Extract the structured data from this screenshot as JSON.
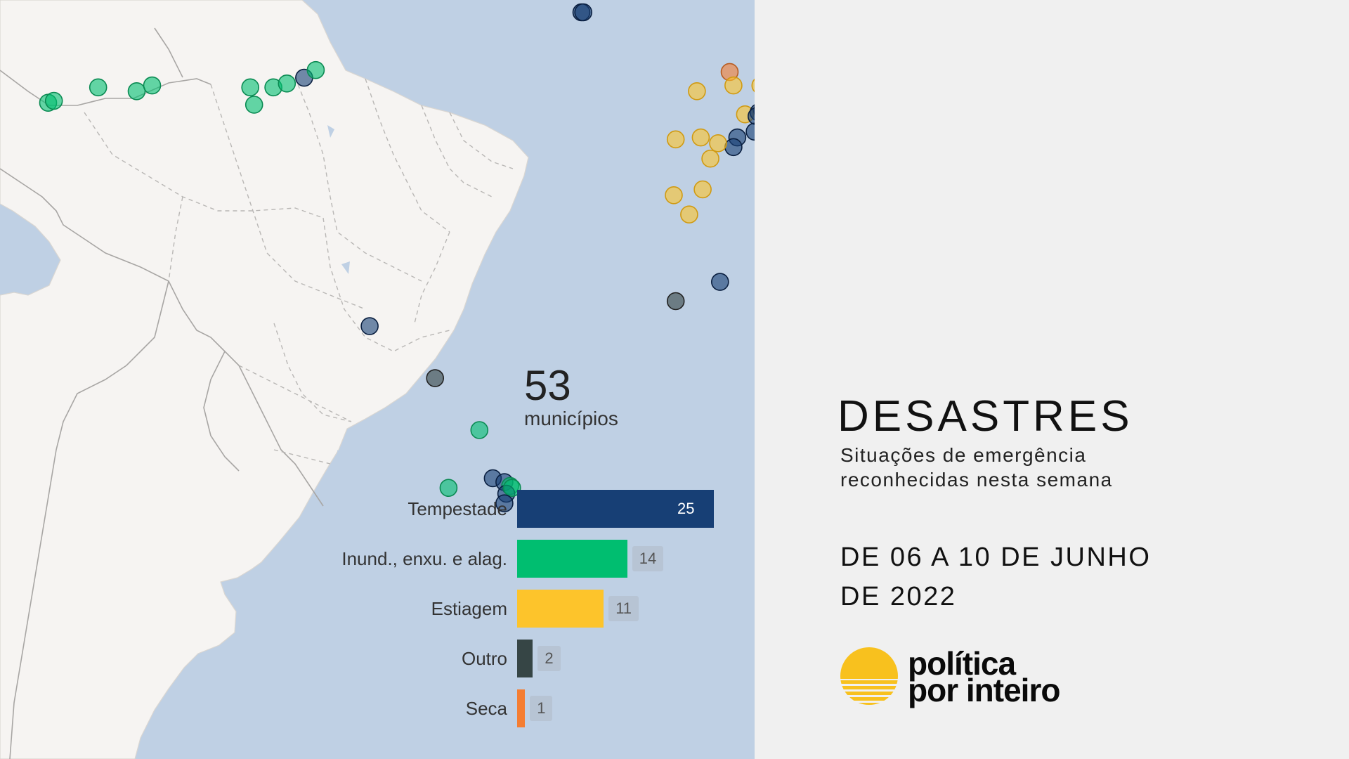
{
  "map": {
    "markers": [
      {
        "category": "Inund., enxu. e alag.",
        "lon": -72.0,
        "lat": -7.6
      },
      {
        "category": "Inund., enxu. e alag.",
        "lon": -71.7,
        "lat": -7.5
      },
      {
        "category": "Inund., enxu. e alag.",
        "lon": -69.4,
        "lat": -6.8
      },
      {
        "category": "Inund., enxu. e alag.",
        "lon": -67.4,
        "lat": -7.0
      },
      {
        "category": "Inund., enxu. e alag.",
        "lon": -66.6,
        "lat": -6.7
      },
      {
        "category": "Inund., enxu. e alag.",
        "lon": -61.5,
        "lat": -6.8
      },
      {
        "category": "Inund., enxu. e alag.",
        "lon": -61.3,
        "lat": -7.7
      },
      {
        "category": "Inund., enxu. e alag.",
        "lon": -60.3,
        "lat": -6.8
      },
      {
        "category": "Inund., enxu. e alag.",
        "lon": -59.6,
        "lat": -6.6
      },
      {
        "category": "Tempestade",
        "lon": -58.7,
        "lat": -6.3
      },
      {
        "category": "Inund., enxu. e alag.",
        "lon": -58.1,
        "lat": -5.9
      },
      {
        "category": "Tempestade",
        "lon": -44.3,
        "lat": -2.9
      },
      {
        "category": "Tempestade",
        "lon": -44.2,
        "lat": -2.9
      },
      {
        "category": "Seca",
        "lon": -36.6,
        "lat": -6.0
      },
      {
        "category": "Estiagem",
        "lon": -36.4,
        "lat": -6.7
      },
      {
        "category": "Estiagem",
        "lon": -35.0,
        "lat": -6.7
      },
      {
        "category": "Estiagem",
        "lon": -38.3,
        "lat": -7.0
      },
      {
        "category": "Estiagem",
        "lon": -35.8,
        "lat": -8.2
      },
      {
        "category": "Tempestade",
        "lon": -35.1,
        "lat": -8.1
      },
      {
        "category": "Tempestade",
        "lon": -34.9,
        "lat": -8.0
      },
      {
        "category": "Tempestade",
        "lon": -34.6,
        "lat": -8.1
      },
      {
        "category": "Tempestade",
        "lon": -35.2,
        "lat": -8.3
      },
      {
        "category": "Tempestade",
        "lon": -34.8,
        "lat": -8.6
      },
      {
        "category": "Tempestade",
        "lon": -35.3,
        "lat": -9.1
      },
      {
        "category": "Tempestade",
        "lon": -36.2,
        "lat": -9.4
      },
      {
        "category": "Tempestade",
        "lon": -36.4,
        "lat": -9.9
      },
      {
        "category": "Estiagem",
        "lon": -39.4,
        "lat": -9.5
      },
      {
        "category": "Estiagem",
        "lon": -38.1,
        "lat": -9.4
      },
      {
        "category": "Estiagem",
        "lon": -37.2,
        "lat": -9.7
      },
      {
        "category": "Estiagem",
        "lon": -37.6,
        "lat": -10.5
      },
      {
        "category": "Estiagem",
        "lon": -39.5,
        "lat": -12.4
      },
      {
        "category": "Estiagem",
        "lon": -38.0,
        "lat": -12.1
      },
      {
        "category": "Estiagem",
        "lon": -38.7,
        "lat": -13.4
      },
      {
        "category": "Tempestade",
        "lon": -37.1,
        "lat": -16.9
      },
      {
        "category": "Outro",
        "lon": -39.4,
        "lat": -17.9
      },
      {
        "category": "Tempestade",
        "lon": -55.3,
        "lat": -19.2
      },
      {
        "category": "Outro",
        "lon": -51.9,
        "lat": -21.9
      },
      {
        "category": "Inund., enxu. e alag.",
        "lon": -49.6,
        "lat": -24.6
      },
      {
        "category": "Tempestade",
        "lon": -48.9,
        "lat": -27.1
      },
      {
        "category": "Tempestade",
        "lon": -48.3,
        "lat": -27.3
      },
      {
        "category": "Inund., enxu. e alag.",
        "lon": -48.0,
        "lat": -27.5
      },
      {
        "category": "Tempestade",
        "lon": -48.2,
        "lat": -27.9
      },
      {
        "category": "Inund., enxu. e alag.",
        "lon": -47.9,
        "lat": -27.6
      },
      {
        "category": "Inund., enxu. e alag.",
        "lon": -51.2,
        "lat": -27.6
      },
      {
        "category": "Tempestade",
        "lon": -48.3,
        "lat": -28.4
      }
    ]
  },
  "colors": {
    "Tempestade": "#173f75",
    "Inund., enxu. e alag.": "#00be70",
    "Estiagem": "#fdc42b",
    "Outro": "#364545",
    "Seca": "#f47d32"
  },
  "marker_strokes": {
    "Tempestade": "#0a1f40",
    "Inund., enxu. e alag.": "#0a8a52",
    "Estiagem": "#d09a12",
    "Outro": "#222",
    "Seca": "#b85d22"
  },
  "summary": {
    "count": "53",
    "label": "municípios"
  },
  "chart_data": {
    "type": "bar",
    "orientation": "horizontal",
    "categories": [
      "Tempestade",
      "Inund., enxu. e alag.",
      "Estiagem",
      "Outro",
      "Seca"
    ],
    "values": [
      25,
      14,
      11,
      2,
      1
    ],
    "title": "",
    "xlabel": "",
    "ylabel": ""
  },
  "info": {
    "title": "DESASTRES",
    "subtitle_line1": "Situações de emergência",
    "subtitle_line2": "reconhecidas nesta semana",
    "date_line1": "DE 06 A 10 DE JUNHO",
    "date_line2": "DE 2022"
  },
  "logo": {
    "line1": "política",
    "line2": "por inteiro"
  }
}
